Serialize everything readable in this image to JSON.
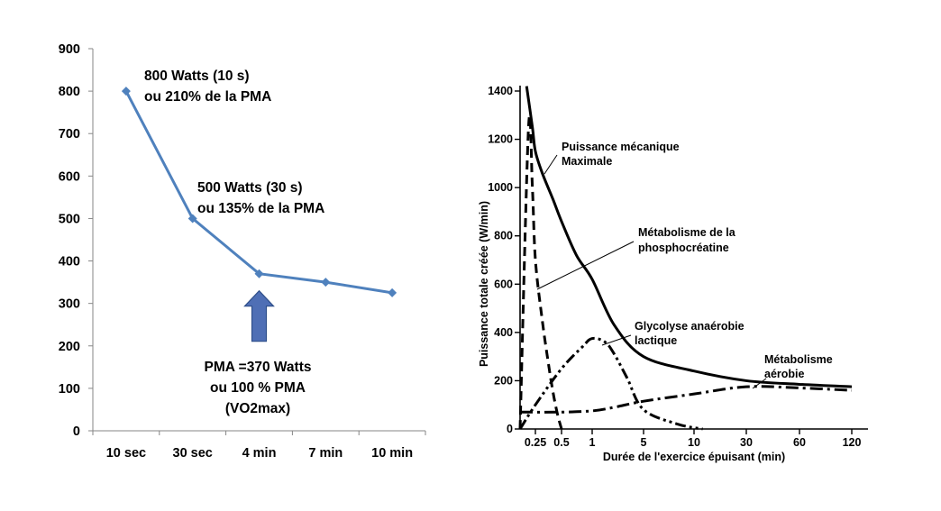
{
  "chart_data": [
    {
      "type": "line",
      "categories": [
        "10 sec",
        "30 sec",
        "4 min",
        "7 min",
        "10 min"
      ],
      "values": [
        800,
        500,
        370,
        350,
        325
      ],
      "ylim": [
        0,
        900
      ],
      "yticks": [
        0,
        100,
        200,
        300,
        400,
        500,
        600,
        700,
        800,
        900
      ],
      "grid": false,
      "color": "#4f81bd",
      "arrow_color": "#4f6fb5",
      "arrow_category": "4 min",
      "annotations": [
        {
          "line1": "800 Watts (10 s)",
          "line2": "ou 210% de la PMA"
        },
        {
          "line1": "500 Watts (30 s)",
          "line2": "ou 135% de la PMA"
        },
        {
          "line1": "PMA =370 Watts",
          "line2": "ou 100 % PMA",
          "line3": "(VO2max)"
        }
      ]
    },
    {
      "type": "line",
      "xlabel": "Durée de l'exercice épuisant (min)",
      "ylabel": "Puissance totale créée (W/min)",
      "x_tick_labels": [
        "0.25",
        "0.5",
        "1",
        "5",
        "10",
        "30",
        "60",
        "120"
      ],
      "yticks": [
        0,
        200,
        400,
        600,
        800,
        1000,
        1200,
        1400
      ],
      "ylim": [
        0,
        1400
      ],
      "grid": false,
      "series": [
        {
          "name": "Puissance mécanique Maximale",
          "style": "solid",
          "x": [
            0.13,
            0.2,
            0.25,
            0.3,
            0.4,
            0.5,
            0.7,
            1,
            2,
            5,
            10,
            30,
            60,
            120
          ],
          "y": [
            1420,
            1250,
            1150,
            1060,
            950,
            860,
            720,
            620,
            430,
            300,
            240,
            200,
            185,
            175
          ]
        },
        {
          "name": "Métabolisme de la phosphocréatine",
          "style": "dashed",
          "x": [
            0.08,
            0.15,
            0.2,
            0.25,
            0.3,
            0.35,
            0.4,
            0.45,
            0.5
          ],
          "y": [
            0,
            1250,
            1000,
            700,
            450,
            280,
            150,
            60,
            0
          ]
        },
        {
          "name": "Glycolyse anaérobie lactique",
          "style": "dash-dot-dot",
          "x": [
            0.08,
            0.25,
            0.5,
            0.8,
            1,
            1.5,
            2,
            3,
            5,
            8,
            12
          ],
          "y": [
            0,
            100,
            250,
            340,
            375,
            360,
            310,
            210,
            80,
            20,
            0
          ]
        },
        {
          "name": "Métabolisme aérobie",
          "style": "dash-dot",
          "x": [
            0.08,
            0.5,
            1,
            2,
            5,
            10,
            30,
            60,
            120
          ],
          "y": [
            70,
            70,
            75,
            90,
            115,
            145,
            175,
            170,
            160
          ]
        }
      ],
      "labels": {
        "pmax_line1": "Puissance mécanique",
        "pmax_line2": "Maximale",
        "pcr_line1": "Métabolisme de la",
        "pcr_line2": "phosphocréatine",
        "glyco_line1": "Glycolyse anaérobie",
        "glyco_line2": "lactique",
        "aero_line1": "Métabolisme",
        "aero_line2": "aérobie"
      }
    }
  ]
}
